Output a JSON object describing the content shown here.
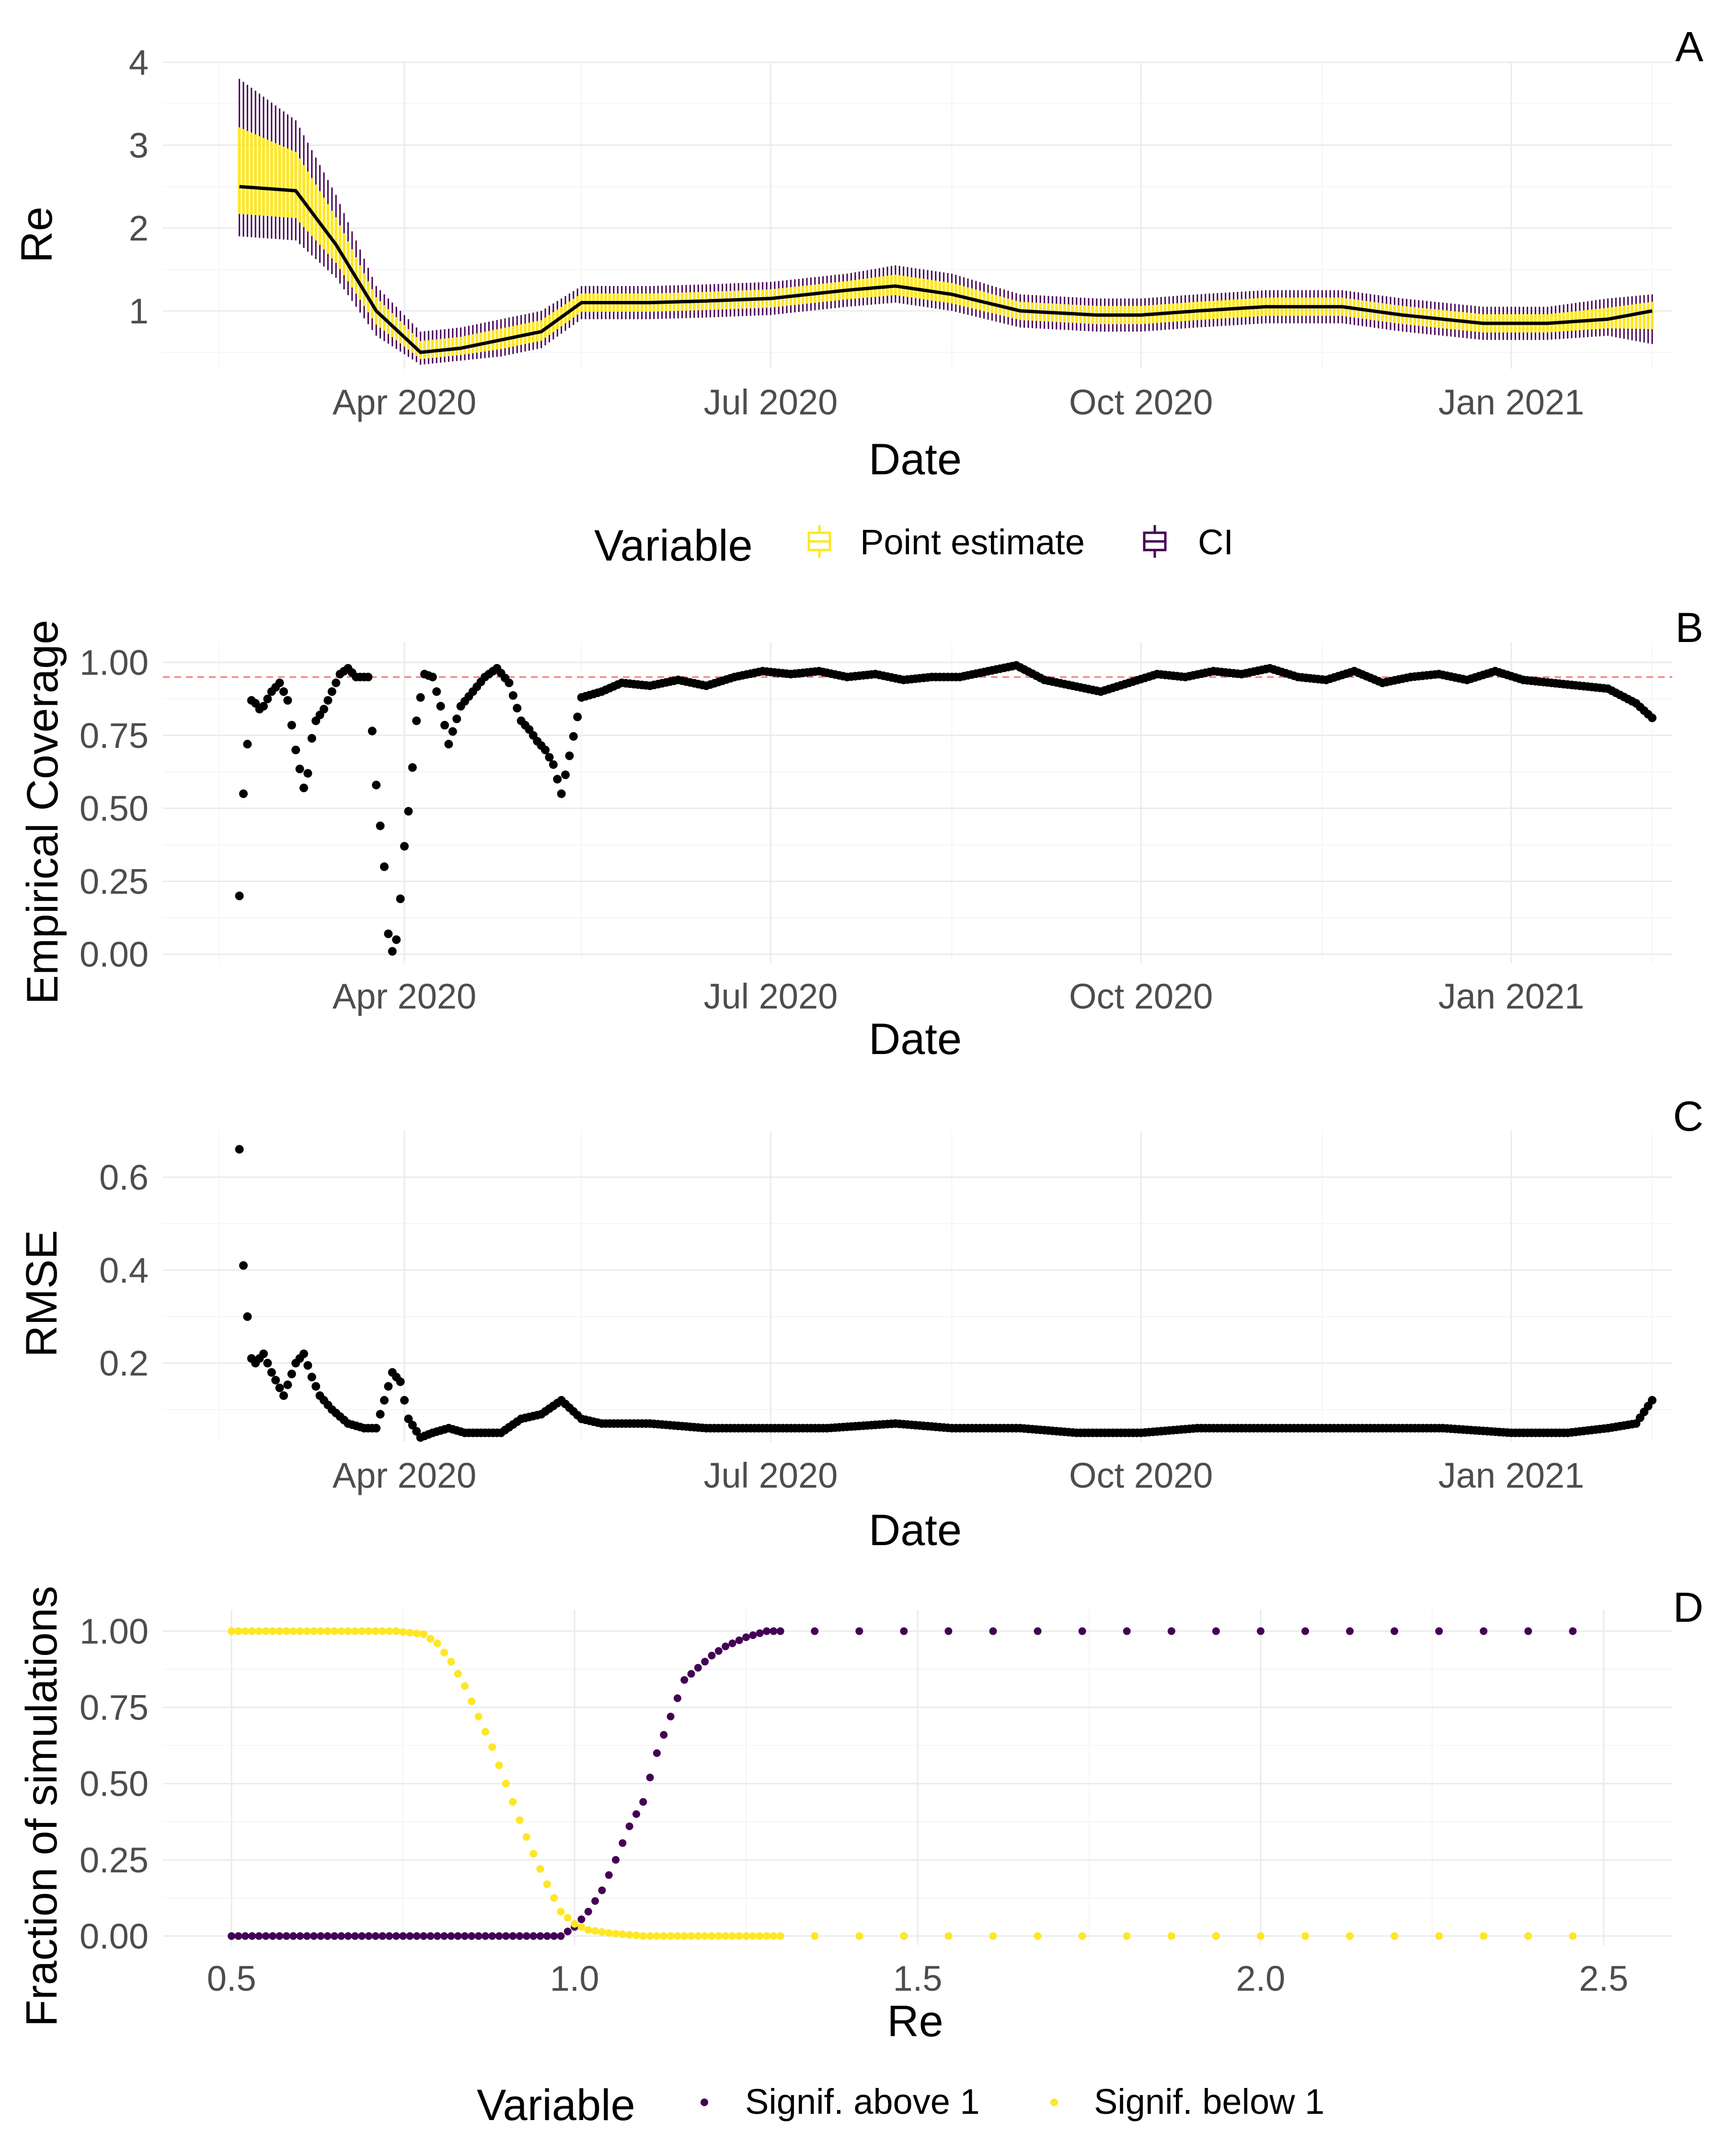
{
  "colors": {
    "point_estimate": "#FDE725",
    "ci": "#440154",
    "signif_above": "#440154",
    "signif_below": "#FDE725",
    "points": "#000000",
    "reference_line": "#F8766D",
    "grid_major": "#EBEBEB",
    "grid_minor": "#F5F5F5"
  },
  "legend_top": {
    "title": "Variable",
    "items": [
      {
        "label": "Point estimate",
        "icon": "boxplot-key-icon",
        "color": "#FDE725"
      },
      {
        "label": "CI",
        "icon": "boxplot-key-icon",
        "color": "#440154"
      }
    ]
  },
  "legend_bottom": {
    "title": "Variable",
    "items": [
      {
        "label": "Signif. above 1",
        "icon": "point-key-icon",
        "color": "#440154"
      },
      {
        "label": "Signif. below 1",
        "icon": "point-key-icon",
        "color": "#FDE725"
      }
    ]
  },
  "chart_data": [
    {
      "panel": "A",
      "type": "line",
      "xlabel": "Date",
      "ylabel": "Re",
      "x_tick_labels": [
        "Apr 2020",
        "Jul 2020",
        "Oct 2020",
        "Jan 2021"
      ],
      "x_ticks": [
        "2020-04-01",
        "2020-07-01",
        "2020-10-01",
        "2021-01-01"
      ],
      "xlim": [
        "2020-02-01",
        "2021-02-10"
      ],
      "ylim": [
        0.3,
        4.0
      ],
      "y_ticks": [
        1,
        2,
        3,
        4
      ],
      "series": [
        {
          "name": "Point estimate",
          "x": [
            "2020-02-20",
            "2020-03-05",
            "2020-03-15",
            "2020-03-25",
            "2020-04-05",
            "2020-04-15",
            "2020-04-25",
            "2020-05-05",
            "2020-05-15",
            "2020-06-01",
            "2020-06-15",
            "2020-07-01",
            "2020-07-20",
            "2020-08-01",
            "2020-08-15",
            "2020-09-01",
            "2020-09-20",
            "2020-10-01",
            "2020-10-15",
            "2020-11-01",
            "2020-11-20",
            "2020-12-05",
            "2020-12-25",
            "2021-01-10",
            "2021-01-25",
            "2021-02-05"
          ],
          "y": [
            2.5,
            2.45,
            1.8,
            1.0,
            0.5,
            0.55,
            0.65,
            0.75,
            1.1,
            1.1,
            1.12,
            1.15,
            1.25,
            1.3,
            1.2,
            1.0,
            0.95,
            0.95,
            1.0,
            1.05,
            1.05,
            0.95,
            0.85,
            0.85,
            0.9,
            1.0
          ]
        },
        {
          "name": "CI",
          "x": [
            "2020-02-20",
            "2020-03-05",
            "2020-03-15",
            "2020-03-25",
            "2020-04-05",
            "2020-04-15",
            "2020-04-25",
            "2020-05-05",
            "2020-05-15",
            "2020-06-01",
            "2020-06-15",
            "2020-07-01",
            "2020-07-20",
            "2020-08-01",
            "2020-08-15",
            "2020-09-01",
            "2020-09-20",
            "2020-10-01",
            "2020-10-15",
            "2020-11-01",
            "2020-11-20",
            "2020-12-05",
            "2020-12-25",
            "2021-01-10",
            "2021-01-25",
            "2021-02-05"
          ],
          "y_low": [
            1.9,
            1.85,
            1.4,
            0.7,
            0.35,
            0.4,
            0.45,
            0.55,
            0.9,
            0.9,
            0.92,
            0.95,
            1.05,
            1.1,
            1.0,
            0.8,
            0.75,
            0.75,
            0.8,
            0.85,
            0.85,
            0.75,
            0.65,
            0.65,
            0.7,
            0.6
          ],
          "y_high": [
            3.8,
            3.3,
            2.4,
            1.3,
            0.75,
            0.8,
            0.9,
            1.0,
            1.3,
            1.3,
            1.32,
            1.35,
            1.45,
            1.55,
            1.45,
            1.2,
            1.15,
            1.15,
            1.2,
            1.25,
            1.25,
            1.15,
            1.05,
            1.05,
            1.15,
            1.2
          ]
        }
      ]
    },
    {
      "panel": "B",
      "type": "scatter",
      "xlabel": "Date",
      "ylabel": "Empirical Coverage",
      "x_tick_labels": [
        "Apr 2020",
        "Jul 2020",
        "Oct 2020",
        "Jan 2021"
      ],
      "x_ticks": [
        "2020-04-01",
        "2020-07-01",
        "2020-10-01",
        "2021-01-01"
      ],
      "xlim": [
        "2020-02-01",
        "2021-02-10"
      ],
      "y_tick_labels": [
        "0.00",
        "0.25",
        "0.50",
        "0.75",
        "1.00"
      ],
      "y_ticks": [
        0,
        0.25,
        0.5,
        0.75,
        1.0
      ],
      "ylim": [
        -0.03,
        1.07
      ],
      "reference_line": 0.95,
      "series": [
        {
          "name": "",
          "x": [
            "2020-02-20",
            "2020-02-21",
            "2020-02-22",
            "2020-02-23",
            "2020-02-24",
            "2020-02-25",
            "2020-02-26",
            "2020-02-28",
            "2020-03-01",
            "2020-03-03",
            "2020-03-05",
            "2020-03-07",
            "2020-03-08",
            "2020-03-09",
            "2020-03-10",
            "2020-03-12",
            "2020-03-14",
            "2020-03-16",
            "2020-03-18",
            "2020-03-20",
            "2020-03-23",
            "2020-03-25",
            "2020-03-27",
            "2020-03-28",
            "2020-03-29",
            "2020-03-30",
            "2020-03-31",
            "2020-04-01",
            "2020-04-02",
            "2020-04-03",
            "2020-04-04",
            "2020-04-06",
            "2020-04-08",
            "2020-04-10",
            "2020-04-12",
            "2020-04-15",
            "2020-04-18",
            "2020-04-21",
            "2020-04-24",
            "2020-04-27",
            "2020-04-30",
            "2020-05-02",
            "2020-05-04",
            "2020-05-06",
            "2020-05-08",
            "2020-05-10",
            "2020-05-12",
            "2020-05-15",
            "2020-05-20",
            "2020-05-25",
            "2020-06-01",
            "2020-06-08",
            "2020-06-15",
            "2020-06-22",
            "2020-06-29",
            "2020-07-06",
            "2020-07-13",
            "2020-07-20",
            "2020-07-27",
            "2020-08-03",
            "2020-08-10",
            "2020-08-17",
            "2020-08-24",
            "2020-08-31",
            "2020-09-07",
            "2020-09-14",
            "2020-09-21",
            "2020-09-28",
            "2020-10-05",
            "2020-10-12",
            "2020-10-19",
            "2020-10-26",
            "2020-11-02",
            "2020-11-09",
            "2020-11-16",
            "2020-11-23",
            "2020-11-30",
            "2020-12-07",
            "2020-12-14",
            "2020-12-21",
            "2020-12-28",
            "2021-01-04",
            "2021-01-11",
            "2021-01-18",
            "2021-01-25",
            "2021-02-01",
            "2021-02-05"
          ],
          "y": [
            0.2,
            0.55,
            0.72,
            0.87,
            0.86,
            0.84,
            0.85,
            0.9,
            0.93,
            0.87,
            0.7,
            0.57,
            0.62,
            0.74,
            0.8,
            0.84,
            0.9,
            0.96,
            0.98,
            0.95,
            0.95,
            0.58,
            0.3,
            0.07,
            0.01,
            0.05,
            0.19,
            0.37,
            0.49,
            0.64,
            0.8,
            0.96,
            0.95,
            0.85,
            0.72,
            0.85,
            0.9,
            0.95,
            0.98,
            0.93,
            0.8,
            0.77,
            0.73,
            0.7,
            0.65,
            0.55,
            0.68,
            0.88,
            0.9,
            0.93,
            0.92,
            0.94,
            0.92,
            0.95,
            0.97,
            0.96,
            0.97,
            0.95,
            0.96,
            0.94,
            0.95,
            0.95,
            0.97,
            0.99,
            0.94,
            0.92,
            0.9,
            0.93,
            0.96,
            0.95,
            0.97,
            0.96,
            0.98,
            0.95,
            0.94,
            0.97,
            0.93,
            0.95,
            0.96,
            0.94,
            0.97,
            0.94,
            0.93,
            0.92,
            0.91,
            0.86,
            0.81
          ]
        }
      ]
    },
    {
      "panel": "C",
      "type": "scatter",
      "xlabel": "Date",
      "ylabel": "RMSE",
      "x_tick_labels": [
        "Apr 2020",
        "Jul 2020",
        "Oct 2020",
        "Jan 2021"
      ],
      "x_ticks": [
        "2020-04-01",
        "2020-07-01",
        "2020-10-01",
        "2021-01-01"
      ],
      "xlim": [
        "2020-02-01",
        "2021-02-10"
      ],
      "y_tick_labels": [
        "0.2",
        "0.4",
        "0.6"
      ],
      "y_ticks": [
        0.2,
        0.4,
        0.6
      ],
      "ylim": [
        0.03,
        0.7
      ],
      "series": [
        {
          "name": "",
          "x": [
            "2020-02-20",
            "2020-02-21",
            "2020-02-22",
            "2020-02-23",
            "2020-02-24",
            "2020-02-26",
            "2020-02-28",
            "2020-03-02",
            "2020-03-05",
            "2020-03-07",
            "2020-03-09",
            "2020-03-11",
            "2020-03-14",
            "2020-03-18",
            "2020-03-22",
            "2020-03-25",
            "2020-03-27",
            "2020-03-29",
            "2020-03-31",
            "2020-04-02",
            "2020-04-05",
            "2020-04-08",
            "2020-04-12",
            "2020-04-16",
            "2020-04-20",
            "2020-04-25",
            "2020-04-30",
            "2020-05-05",
            "2020-05-10",
            "2020-05-15",
            "2020-05-20",
            "2020-06-01",
            "2020-06-15",
            "2020-07-01",
            "2020-07-15",
            "2020-08-01",
            "2020-08-15",
            "2020-09-01",
            "2020-09-15",
            "2020-10-01",
            "2020-10-15",
            "2020-11-01",
            "2020-11-15",
            "2020-12-01",
            "2020-12-15",
            "2021-01-01",
            "2021-01-15",
            "2021-01-25",
            "2021-02-01",
            "2021-02-05"
          ],
          "y": [
            0.66,
            0.41,
            0.3,
            0.21,
            0.2,
            0.22,
            0.18,
            0.13,
            0.2,
            0.22,
            0.17,
            0.13,
            0.1,
            0.07,
            0.06,
            0.06,
            0.12,
            0.18,
            0.16,
            0.08,
            0.04,
            0.05,
            0.06,
            0.05,
            0.05,
            0.05,
            0.08,
            0.09,
            0.12,
            0.08,
            0.07,
            0.07,
            0.06,
            0.06,
            0.06,
            0.07,
            0.06,
            0.06,
            0.05,
            0.05,
            0.06,
            0.06,
            0.06,
            0.06,
            0.06,
            0.05,
            0.05,
            0.06,
            0.07,
            0.12
          ]
        }
      ]
    },
    {
      "panel": "D",
      "type": "scatter",
      "xlabel": "Re",
      "ylabel": "Fraction of simulations",
      "x_tick_labels": [
        "0.5",
        "1.0",
        "1.5",
        "2.0",
        "2.5"
      ],
      "x_ticks": [
        0.5,
        1.0,
        1.5,
        2.0,
        2.5
      ],
      "xlim": [
        0.4,
        2.6
      ],
      "y_tick_labels": [
        "0.00",
        "0.25",
        "0.50",
        "0.75",
        "1.00"
      ],
      "y_ticks": [
        0,
        0.25,
        0.5,
        0.75,
        1.0
      ],
      "ylim": [
        -0.03,
        1.07
      ],
      "series": [
        {
          "name": "Signif. above 1",
          "x": [
            0.5,
            0.55,
            0.6,
            0.65,
            0.7,
            0.75,
            0.8,
            0.85,
            0.9,
            0.95,
            0.98,
            1.0,
            1.02,
            1.04,
            1.06,
            1.08,
            1.1,
            1.12,
            1.14,
            1.16,
            1.18,
            1.2,
            1.22,
            1.25,
            1.28,
            1.3,
            1.35,
            1.4,
            1.5,
            1.6,
            1.7,
            1.8,
            1.9,
            2.0,
            2.1,
            2.2,
            2.3,
            2.4,
            2.5
          ],
          "y": [
            0,
            0,
            0,
            0,
            0,
            0,
            0,
            0,
            0,
            0,
            0,
            0.03,
            0.08,
            0.15,
            0.25,
            0.36,
            0.44,
            0.6,
            0.72,
            0.84,
            0.88,
            0.92,
            0.95,
            0.98,
            1,
            1,
            1,
            1,
            1,
            1,
            1,
            1,
            1,
            1,
            1,
            1,
            1,
            1,
            1
          ]
        },
        {
          "name": "Signif. below 1",
          "x": [
            0.5,
            0.55,
            0.6,
            0.65,
            0.7,
            0.74,
            0.78,
            0.8,
            0.82,
            0.84,
            0.86,
            0.88,
            0.9,
            0.92,
            0.94,
            0.96,
            0.98,
            1.0,
            1.02,
            1.05,
            1.1,
            1.2,
            1.3,
            1.4,
            1.5,
            1.6,
            1.7,
            1.8,
            1.9,
            2.0,
            2.1,
            2.2,
            2.3,
            2.4,
            2.5
          ],
          "y": [
            1,
            1,
            1,
            1,
            1,
            1,
            0.99,
            0.96,
            0.9,
            0.82,
            0.72,
            0.62,
            0.5,
            0.38,
            0.27,
            0.17,
            0.08,
            0.04,
            0.02,
            0.01,
            0,
            0,
            0,
            0,
            0,
            0,
            0,
            0,
            0,
            0,
            0,
            0,
            0,
            0,
            0
          ]
        }
      ]
    }
  ],
  "panel_tags": [
    "A",
    "B",
    "C",
    "D"
  ]
}
